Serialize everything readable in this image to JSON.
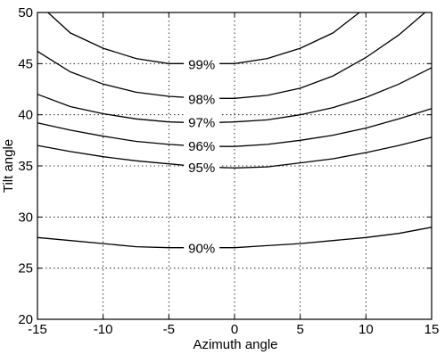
{
  "chart_data": {
    "type": "line",
    "title": "",
    "xlabel": "Azimuth angle",
    "ylabel": "Tilt angle",
    "xlim": [
      -15,
      15
    ],
    "ylim": [
      20,
      50
    ],
    "xticks": [
      "-15",
      "-10",
      "-5",
      "0",
      "5",
      "10",
      "15"
    ],
    "yticks": [
      "20",
      "25",
      "30",
      "35",
      "40",
      "45",
      "50"
    ],
    "grid": true,
    "contours": [
      {
        "label": "99%",
        "label_at": [
          -2.5,
          45.0
        ],
        "points": [
          [
            -14.2,
            50
          ],
          [
            -12.5,
            48.0
          ],
          [
            -10,
            46.5
          ],
          [
            -7.5,
            45.5
          ],
          [
            -5,
            45.0
          ],
          [
            -2.5,
            45.0
          ],
          [
            0,
            45.0
          ],
          [
            2.5,
            45.5
          ],
          [
            5,
            46.5
          ],
          [
            7.5,
            48.0
          ],
          [
            9.5,
            50
          ]
        ]
      },
      {
        "label": "98%",
        "label_at": [
          -2.5,
          41.6
        ],
        "points": [
          [
            -15,
            46.2
          ],
          [
            -12.5,
            44.2
          ],
          [
            -10,
            43.0
          ],
          [
            -7.5,
            42.2
          ],
          [
            -5,
            41.8
          ],
          [
            -2.5,
            41.6
          ],
          [
            0,
            41.6
          ],
          [
            2.5,
            41.9
          ],
          [
            5,
            42.6
          ],
          [
            7.5,
            43.8
          ],
          [
            10,
            45.6
          ],
          [
            12.5,
            47.8
          ],
          [
            14.5,
            50
          ]
        ]
      },
      {
        "label": "97%",
        "label_at": [
          -2.5,
          39.3
        ],
        "points": [
          [
            -15,
            42.0
          ],
          [
            -12.5,
            40.8
          ],
          [
            -10,
            40.1
          ],
          [
            -7.5,
            39.6
          ],
          [
            -5,
            39.3
          ],
          [
            -2.5,
            39.2
          ],
          [
            0,
            39.3
          ],
          [
            2.5,
            39.5
          ],
          [
            5,
            40.0
          ],
          [
            7.5,
            40.7
          ],
          [
            10,
            41.7
          ],
          [
            12.5,
            43.0
          ],
          [
            15,
            44.6
          ]
        ]
      },
      {
        "label": "96%",
        "label_at": [
          -2.5,
          37.0
        ],
        "points": [
          [
            -15,
            39.2
          ],
          [
            -12.5,
            38.5
          ],
          [
            -10,
            37.9
          ],
          [
            -7.5,
            37.4
          ],
          [
            -5,
            37.1
          ],
          [
            -2.5,
            36.9
          ],
          [
            0,
            36.9
          ],
          [
            2.5,
            37.1
          ],
          [
            5,
            37.5
          ],
          [
            7.5,
            38.0
          ],
          [
            10,
            38.7
          ],
          [
            12.5,
            39.6
          ],
          [
            15,
            40.6
          ]
        ]
      },
      {
        "label": "95%",
        "label_at": [
          -2.5,
          34.9
        ],
        "points": [
          [
            -15,
            37.0
          ],
          [
            -12.5,
            36.4
          ],
          [
            -10,
            35.9
          ],
          [
            -7.5,
            35.5
          ],
          [
            -5,
            35.2
          ],
          [
            -2.5,
            34.9
          ],
          [
            0,
            34.8
          ],
          [
            2.5,
            34.9
          ],
          [
            5,
            35.3
          ],
          [
            7.5,
            35.7
          ],
          [
            10,
            36.3
          ],
          [
            12.5,
            37.0
          ],
          [
            15,
            37.8
          ]
        ]
      },
      {
        "label": "90%",
        "label_at": [
          -2.5,
          27.0
        ],
        "points": [
          [
            -15,
            28.0
          ],
          [
            -12.5,
            27.7
          ],
          [
            -10,
            27.4
          ],
          [
            -7.5,
            27.1
          ],
          [
            -5,
            27.0
          ],
          [
            -2.5,
            27.0
          ],
          [
            0,
            27.0
          ],
          [
            2.5,
            27.2
          ],
          [
            5,
            27.4
          ],
          [
            7.5,
            27.7
          ],
          [
            10,
            28.0
          ],
          [
            12.5,
            28.4
          ],
          [
            15,
            29.0
          ]
        ]
      }
    ]
  }
}
